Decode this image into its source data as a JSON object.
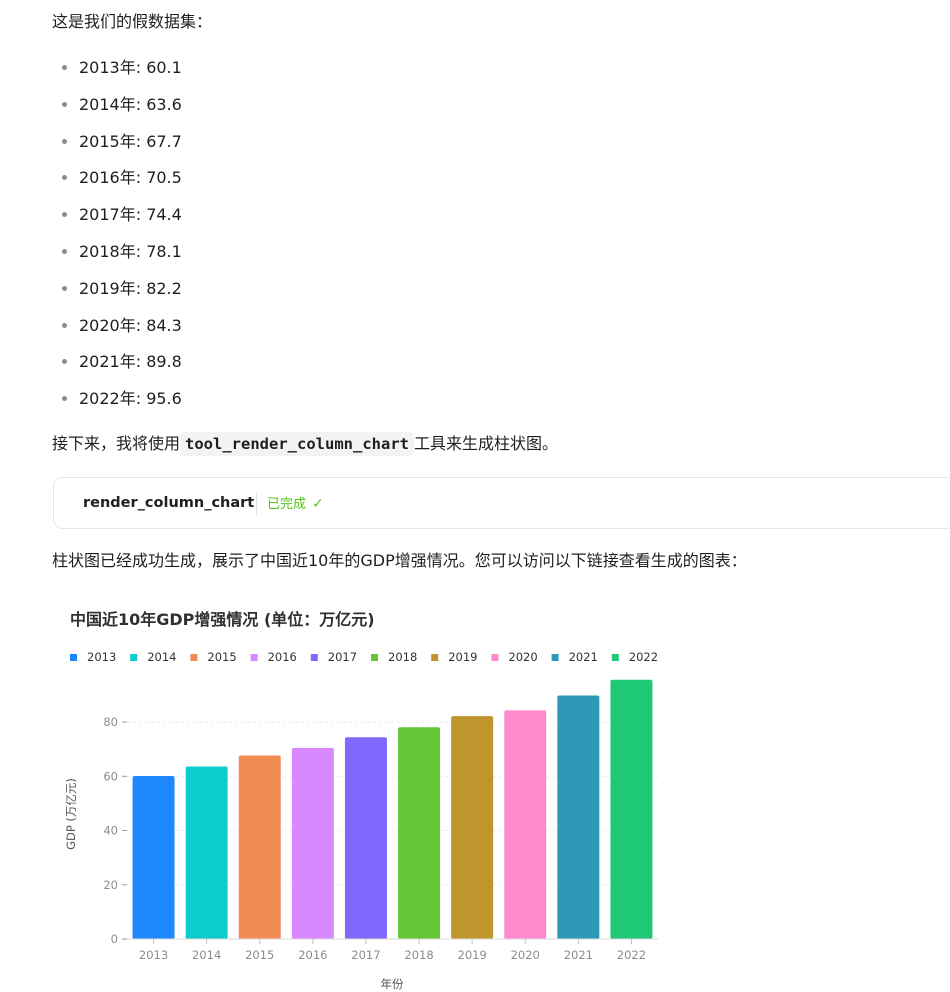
{
  "intro": "这是我们的假数据集：",
  "list": [
    "2013年: 60.1",
    "2014年: 63.6",
    "2015年: 67.7",
    "2016年: 70.5",
    "2017年: 74.4",
    "2018年: 78.1",
    "2019年: 82.2",
    "2020年: 84.3",
    "2021年: 89.8",
    "2022年: 95.6"
  ],
  "next_para": {
    "before": "接下来，我将使用",
    "code": "tool_render_column_chart",
    "after": "工具来生成柱状图。"
  },
  "tool_card": {
    "name": "render_column_chart",
    "status": "已完成",
    "status_icon": "check-icon"
  },
  "result_para": "柱状图已经成功生成，展示了中国近10年的GDP增强情况。您可以访问以下链接查看生成的图表：",
  "chart_data": {
    "type": "bar",
    "title": "中国近10年GDP增强情况 (单位：万亿元)",
    "xlabel": "年份",
    "ylabel": "GDP (万亿元)",
    "categories": [
      "2013",
      "2014",
      "2015",
      "2016",
      "2017",
      "2018",
      "2019",
      "2020",
      "2021",
      "2022"
    ],
    "values": [
      60.1,
      63.6,
      67.7,
      70.5,
      74.4,
      78.1,
      82.2,
      84.3,
      89.8,
      95.6
    ],
    "colors": [
      "#1e88ff",
      "#0ccdcb",
      "#f08c54",
      "#d889ff",
      "#7f68fc",
      "#67c638",
      "#bf952e",
      "#ff89cd",
      "#2e98b9",
      "#1fc876"
    ],
    "ylim": [
      0,
      97
    ],
    "yticks": [
      0,
      20,
      40,
      60,
      80
    ],
    "legend_position": "top-left",
    "grid": true
  }
}
